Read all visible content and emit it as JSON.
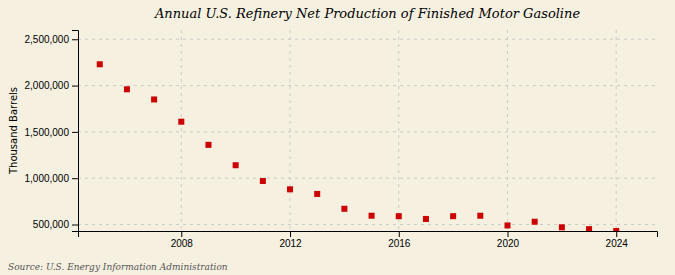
{
  "chart_data": {
    "type": "scatter",
    "title": "Annual U.S. Refinery Net Production of Finished Motor Gasoline",
    "ylabel": "Thousand Barrels",
    "source": "Source: U.S. Energy Information Administration",
    "x": [
      2005,
      2006,
      2007,
      2008,
      2009,
      2010,
      2011,
      2012,
      2013,
      2014,
      2015,
      2016,
      2017,
      2018,
      2019,
      2020,
      2021,
      2022,
      2023,
      2024
    ],
    "values": [
      2230000,
      1960000,
      1850000,
      1610000,
      1360000,
      1140000,
      970000,
      880000,
      830000,
      670000,
      595000,
      590000,
      560000,
      590000,
      595000,
      490000,
      530000,
      470000,
      450000,
      430000
    ],
    "color": "#cc0000",
    "marker": "square",
    "xlim": [
      2004.2,
      2025.5
    ],
    "xticks": [
      2008,
      2012,
      2016,
      2020,
      2024
    ],
    "ylim": [
      430000,
      2600000
    ],
    "yticks": [
      {
        "value": 500000,
        "label": "500,000"
      },
      {
        "value": 1000000,
        "label": "1,000,000"
      },
      {
        "value": 1500000,
        "label": "1,500,000"
      },
      {
        "value": 2000000,
        "label": "2,000,000"
      },
      {
        "value": 2500000,
        "label": "2,500,000"
      }
    ],
    "grid": true
  }
}
